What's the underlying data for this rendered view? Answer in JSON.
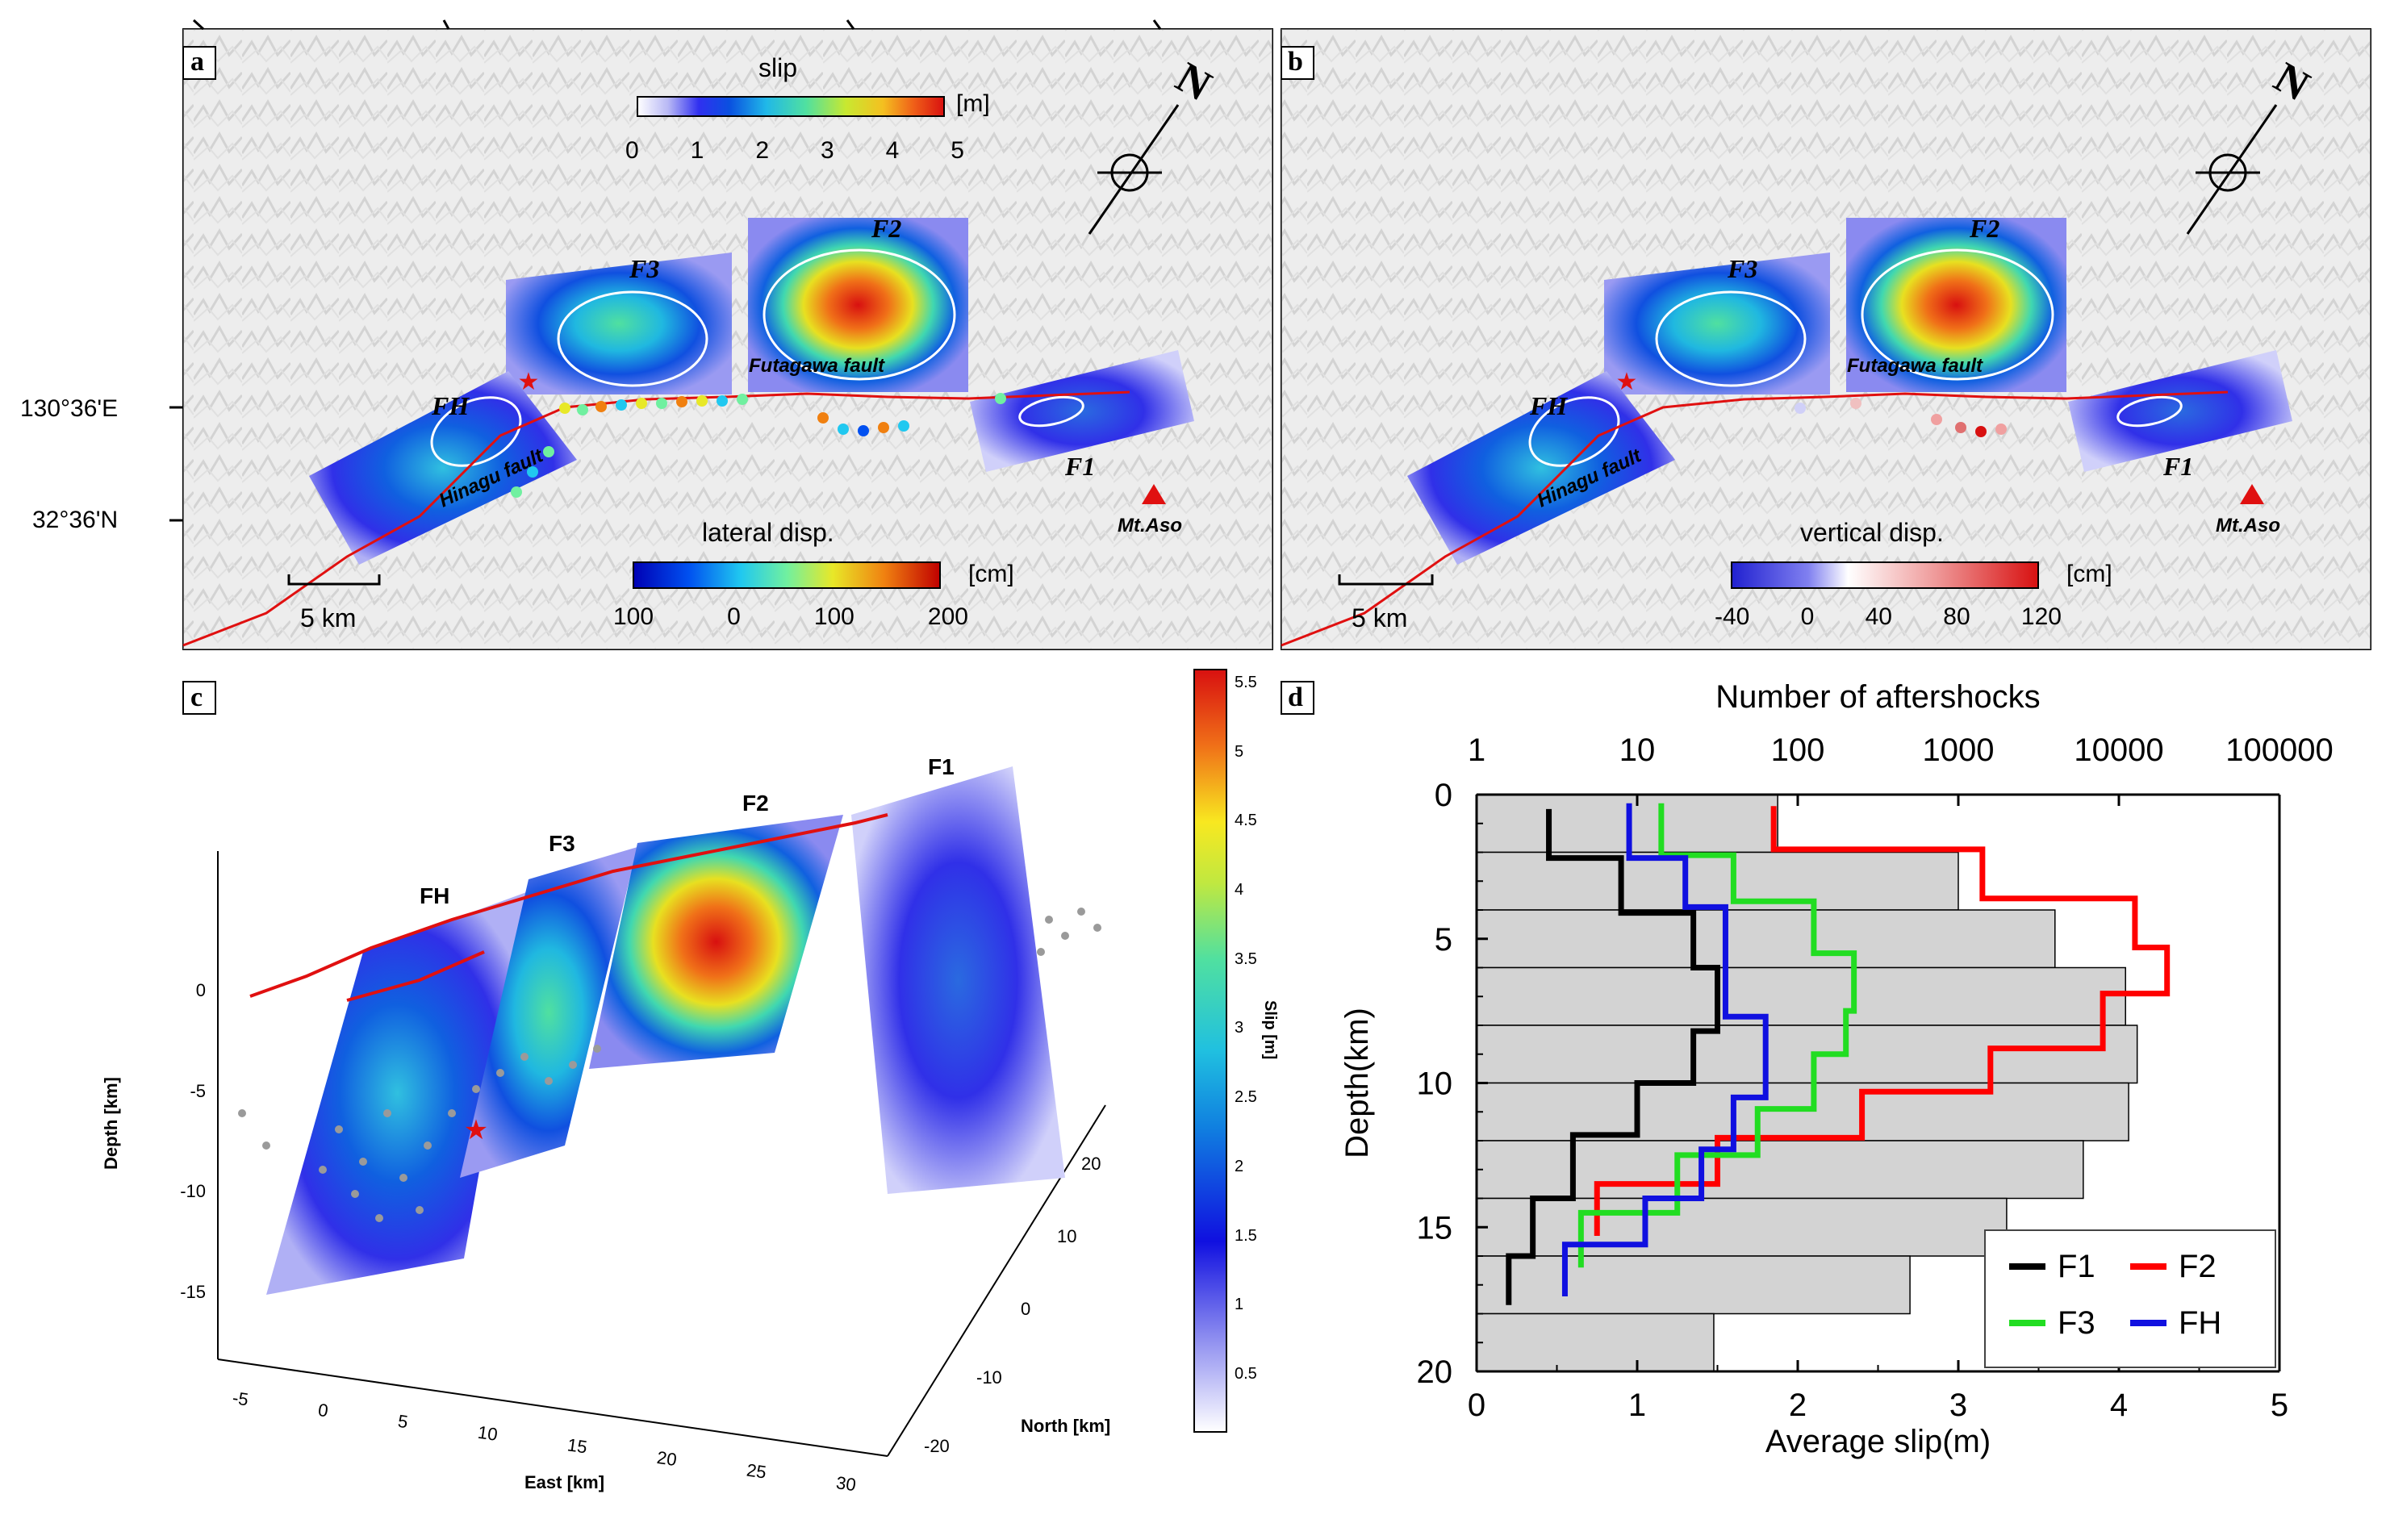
{
  "colors": {
    "slip_scale": [
      "#ffffff",
      "#c9c9f5",
      "#5a5af0",
      "#1414e0",
      "#0a6ad6",
      "#1aa8e0",
      "#3cd6c8",
      "#66e080",
      "#b8e838",
      "#f0e020",
      "#f4a020",
      "#f05018",
      "#dc1414"
    ],
    "lateral_scale": [
      "#0000b4",
      "#0050f0",
      "#20c8f0",
      "#70f0a0",
      "#e8e828",
      "#f08010",
      "#c00000"
    ],
    "vertical_scale": [
      "#2020d0",
      "#8080f0",
      "#ffffff",
      "#f0a0a0",
      "#d81010"
    ],
    "F1": "#000000",
    "F2": "#ff0000",
    "F3": "#22dd22",
    "FH": "#1010e0",
    "histogram_fill": "#d3d3d3",
    "fault_trace": "#e01010"
  },
  "panel_a": {
    "label": "a",
    "slip_title": "slip",
    "slip_unit": "[m]",
    "slip_ticks": [
      "0",
      "1",
      "2",
      "3",
      "4",
      "5"
    ],
    "lateral_title": "lateral disp.",
    "lateral_unit": "[cm]",
    "lateral_ticks": [
      "100",
      "0",
      "100",
      "200"
    ],
    "scale_bar": "5 km",
    "lon_label": "130°36'E",
    "lat_label": "32°36'N",
    "north": "N",
    "faults": [
      "F3",
      "F2",
      "FH",
      "F1"
    ],
    "fault_names": [
      "Futagawa fault",
      "Hinagu fault"
    ],
    "volcano": "Mt.Aso"
  },
  "panel_b": {
    "label": "b",
    "vertical_title": "vertical disp.",
    "vertical_unit": "[cm]",
    "vertical_ticks": [
      "-40",
      "0",
      "40",
      "80",
      "120"
    ],
    "scale_bar": "5 km",
    "north": "N",
    "faults": [
      "F3",
      "F2",
      "FH",
      "F1"
    ],
    "fault_names": [
      "Futagawa fault",
      "Hinagu fault"
    ],
    "volcano": "Mt.Aso"
  },
  "panel_c": {
    "label": "c",
    "fault_labels": [
      "FH",
      "F3",
      "F2",
      "F1"
    ],
    "depth_label": "Depth [km]",
    "depth_ticks": [
      "0",
      "-5",
      "-10",
      "-15"
    ],
    "east_label": "East [km]",
    "east_ticks": [
      "-5",
      "0",
      "5",
      "10",
      "15",
      "20",
      "25",
      "30"
    ],
    "north_label": "North [km]",
    "north_ticks": [
      "20",
      "10",
      "0",
      "-10",
      "-20"
    ],
    "colorbar_label": "Slip [m]",
    "colorbar_ticks": [
      "5.5",
      "5",
      "4.5",
      "4",
      "3.5",
      "3",
      "2.5",
      "2",
      "1.5",
      "1",
      "0.5"
    ]
  },
  "chart_data": {
    "type": "line",
    "panel_label": "d",
    "title": "",
    "xlabel": "Average slip(m)",
    "ylabel": "Depth(km)",
    "top_xlabel": "Number of aftershocks",
    "xlim": [
      0,
      5
    ],
    "ylim": [
      20,
      0
    ],
    "x_ticks": [
      "0",
      "1",
      "2",
      "3",
      "4",
      "5"
    ],
    "y_ticks": [
      "0",
      "5",
      "10",
      "15",
      "20"
    ],
    "top_x_ticks": [
      "1",
      "10",
      "100",
      "1000",
      "10000",
      "100000"
    ],
    "top_xlim_log10": [
      0,
      5
    ],
    "histogram": {
      "name": "Number of aftershocks",
      "bin_edges": [
        0,
        2,
        4,
        6,
        8,
        10,
        12,
        14,
        16,
        18,
        20
      ],
      "counts": [
        75,
        1000,
        4000,
        11000,
        13000,
        11500,
        6000,
        2000,
        500,
        30
      ]
    },
    "series": [
      {
        "name": "F1",
        "steps": [
          [
            0.45,
            0.5,
            2.2
          ],
          [
            0.9,
            2.2,
            4.1
          ],
          [
            1.35,
            4.1,
            6.0
          ],
          [
            1.5,
            6.0,
            8.2
          ],
          [
            1.35,
            8.2,
            10.0
          ],
          [
            1.0,
            10.0,
            11.8
          ],
          [
            0.6,
            11.8,
            14.0
          ],
          [
            0.35,
            14.0,
            16.0
          ],
          [
            0.2,
            16.0,
            17.7
          ]
        ]
      },
      {
        "name": "F2",
        "steps": [
          [
            1.85,
            0.4,
            1.9
          ],
          [
            3.15,
            1.9,
            3.6
          ],
          [
            4.1,
            3.6,
            5.3
          ],
          [
            4.3,
            5.3,
            6.9
          ],
          [
            3.9,
            6.9,
            8.8
          ],
          [
            3.2,
            8.8,
            10.3
          ],
          [
            2.4,
            10.3,
            11.9
          ],
          [
            1.5,
            11.9,
            13.5
          ],
          [
            0.75,
            13.5,
            15.3
          ]
        ]
      },
      {
        "name": "F3",
        "steps": [
          [
            1.15,
            0.3,
            2.1
          ],
          [
            1.6,
            2.1,
            3.7
          ],
          [
            2.1,
            3.7,
            5.5
          ],
          [
            2.35,
            5.5,
            7.5
          ],
          [
            2.3,
            7.5,
            9.0
          ],
          [
            2.1,
            9.0,
            10.9
          ],
          [
            1.75,
            10.9,
            12.5
          ],
          [
            1.25,
            12.5,
            14.5
          ],
          [
            0.65,
            14.5,
            16.4
          ]
        ]
      },
      {
        "name": "FH",
        "steps": [
          [
            0.95,
            0.3,
            2.2
          ],
          [
            1.3,
            2.2,
            3.9
          ],
          [
            1.55,
            3.9,
            5.7
          ],
          [
            1.55,
            5.7,
            7.7
          ],
          [
            1.8,
            7.7,
            10.5
          ],
          [
            1.6,
            10.5,
            12.3
          ],
          [
            1.4,
            12.3,
            14.0
          ],
          [
            1.05,
            14.0,
            15.6
          ],
          [
            0.55,
            15.6,
            17.4
          ]
        ]
      }
    ],
    "legend": [
      "F1",
      "F2",
      "F3",
      "FH"
    ],
    "legend_position": "bottom-right"
  }
}
